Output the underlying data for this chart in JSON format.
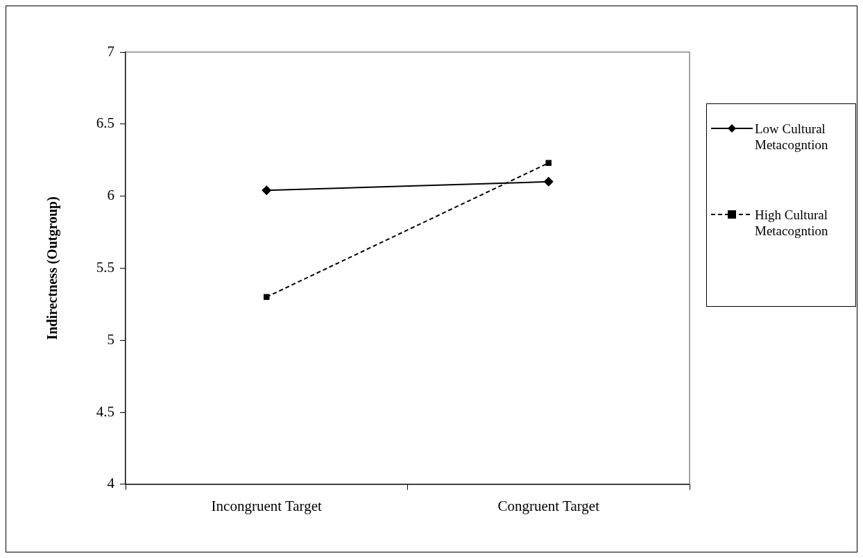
{
  "chart_data": {
    "type": "line",
    "ylabel": "Indirectness (Outgroup)",
    "categories": [
      "Incongruent Target",
      "Congruent Target"
    ],
    "series": [
      {
        "name": "Low Cultural Metacogntion",
        "color": "#000000",
        "values": [
          6.04,
          6.1
        ],
        "marker": "diamond",
        "line_style": "solid"
      },
      {
        "name": "High Cultural Metacogntion",
        "color": "#000000",
        "values": [
          5.3,
          6.23
        ],
        "marker": "square",
        "line_style": "dashed"
      }
    ],
    "ylim": [
      4,
      7
    ],
    "yticks": [
      4,
      4.5,
      5,
      5.5,
      6,
      6.5,
      7
    ],
    "grid": false,
    "legend": "right"
  }
}
